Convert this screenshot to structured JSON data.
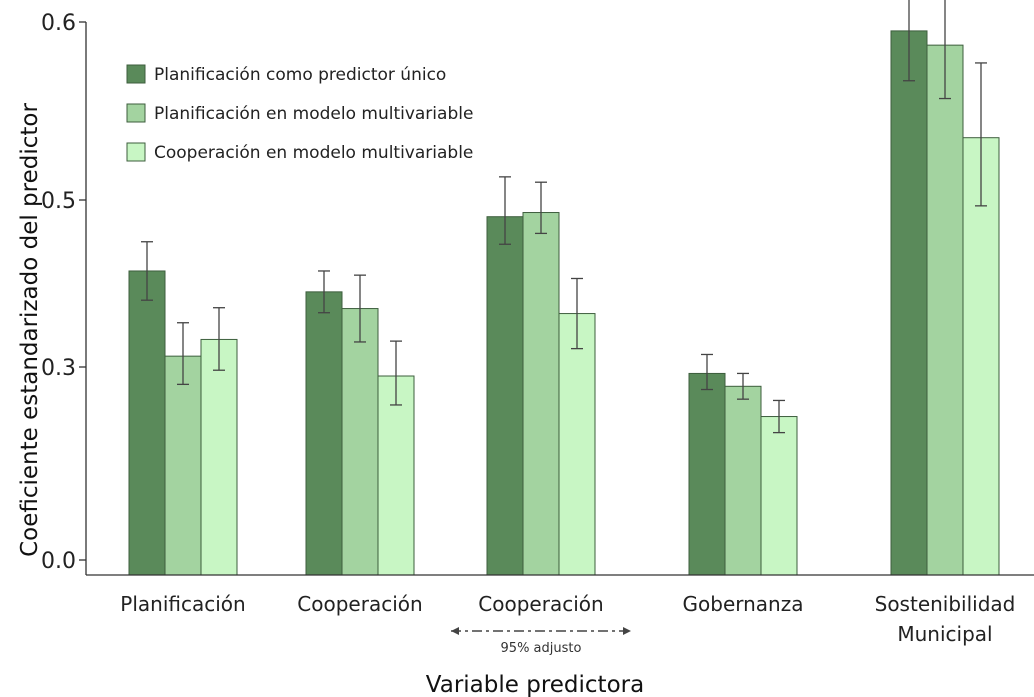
{
  "chart_data": {
    "type": "bar",
    "title": "",
    "xlabel": "Variable predictora",
    "ylabel": "Coeficiente estandarizado del predictor",
    "yticks": [
      {
        "value": 0.0,
        "label": "0.0"
      },
      {
        "value": 0.3,
        "label": "0.3"
      },
      {
        "value": 0.5,
        "label": "0.5"
      },
      {
        "value": 0.6,
        "label": "0.6"
      }
    ],
    "ylim": [
      0.0,
      0.6
    ],
    "grid": false,
    "legend_position": "top-left",
    "categories": [
      {
        "lines": [
          "Planificación"
        ]
      },
      {
        "lines": [
          "Cooperación"
        ]
      },
      {
        "lines": [
          "Cooperación"
        ],
        "note": "95% adjusto"
      },
      {
        "lines": [
          "Gobernanza"
        ]
      },
      {
        "lines": [
          "Sostenibilidad",
          "Municipal"
        ]
      }
    ],
    "series": [
      {
        "name": "Planificación como predictor único",
        "color": "#5a8a5a",
        "values": [
          0.415,
          0.39,
          0.48,
          0.29,
          0.595
        ],
        "errors": [
          0.035,
          0.025,
          0.033,
          0.025,
          0.028
        ]
      },
      {
        "name": "Planificación en modelo multivariable",
        "color": "#a3d3a0",
        "values": [
          0.313,
          0.37,
          0.485,
          0.27,
          0.587
        ],
        "errors": [
          0.04,
          0.04,
          0.025,
          0.02,
          0.03
        ]
      },
      {
        "name": "Cooperación en modelo multivariable",
        "color": "#c8f6c4",
        "values": [
          0.333,
          0.286,
          0.364,
          0.223,
          0.535
        ],
        "errors": [
          0.038,
          0.045,
          0.042,
          0.025,
          0.042
        ]
      }
    ]
  }
}
